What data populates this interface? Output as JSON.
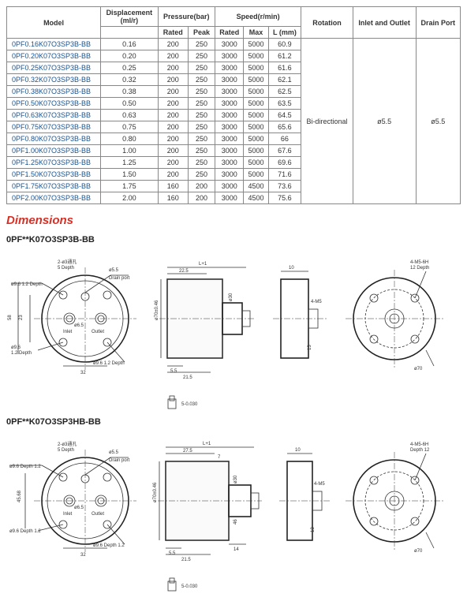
{
  "table": {
    "header": {
      "model": "Model",
      "displacement": "Displacement",
      "displacement_unit": "(ml/r)",
      "pressure": "Pressure(bar)",
      "pressure_rated": "Rated",
      "pressure_peak": "Peak",
      "speed": "Speed(r/min)",
      "speed_rated": "Rated",
      "speed_max": "Max",
      "speed_l": "L (mm)",
      "rotation": "Rotation",
      "inlet_outlet": "Inlet and Outlet",
      "drain_port": "Drain Port"
    },
    "rotation_value": "Bi-directional",
    "inlet_outlet_value": "ø5.5",
    "drain_port_value": "ø5.5",
    "rows": [
      {
        "model": "0PF0.16K07O3SP3B-BB",
        "disp": "0.16",
        "p_rated": "200",
        "p_peak": "250",
        "s_rated": "3000",
        "s_max": "5000",
        "l": "60.9"
      },
      {
        "model": "0PF0.20K07O3SP3B-BB",
        "disp": "0.20",
        "p_rated": "200",
        "p_peak": "250",
        "s_rated": "3000",
        "s_max": "5000",
        "l": "61.2"
      },
      {
        "model": "0PF0.25K07O3SP3B-BB",
        "disp": "0.25",
        "p_rated": "200",
        "p_peak": "250",
        "s_rated": "3000",
        "s_max": "5000",
        "l": "61.6"
      },
      {
        "model": "0PF0.32K07O3SP3B-BB",
        "disp": "0.32",
        "p_rated": "200",
        "p_peak": "250",
        "s_rated": "3000",
        "s_max": "5000",
        "l": "62.1"
      },
      {
        "model": "0PF0.38K07O3SP3B-BB",
        "disp": "0.38",
        "p_rated": "200",
        "p_peak": "250",
        "s_rated": "3000",
        "s_max": "5000",
        "l": "62.5"
      },
      {
        "model": "0PF0.50K07O3SP3B-BB",
        "disp": "0.50",
        "p_rated": "200",
        "p_peak": "250",
        "s_rated": "3000",
        "s_max": "5000",
        "l": "63.5"
      },
      {
        "model": "0PF0.63K07O3SP3B-BB",
        "disp": "0.63",
        "p_rated": "200",
        "p_peak": "250",
        "s_rated": "3000",
        "s_max": "5000",
        "l": "64.5"
      },
      {
        "model": "0PF0.75K07O3SP3B-BB",
        "disp": "0.75",
        "p_rated": "200",
        "p_peak": "250",
        "s_rated": "3000",
        "s_max": "5000",
        "l": "65.6"
      },
      {
        "model": "0PF0.80K07O3SP3B-BB",
        "disp": "0.80",
        "p_rated": "200",
        "p_peak": "250",
        "s_rated": "3000",
        "s_max": "5000",
        "l": "66"
      },
      {
        "model": "0PF1.00K07O3SP3B-BB",
        "disp": "1.00",
        "p_rated": "200",
        "p_peak": "250",
        "s_rated": "3000",
        "s_max": "5000",
        "l": "67.6"
      },
      {
        "model": "0PF1.25K07O3SP3B-BB",
        "disp": "1.25",
        "p_rated": "200",
        "p_peak": "250",
        "s_rated": "3000",
        "s_max": "5000",
        "l": "69.6"
      },
      {
        "model": "0PF1.50K07O3SP3B-BB",
        "disp": "1.50",
        "p_rated": "200",
        "p_peak": "250",
        "s_rated": "3000",
        "s_max": "5000",
        "l": "71.6"
      },
      {
        "model": "0PF1.75K07O3SP3B-BB",
        "disp": "1.75",
        "p_rated": "160",
        "p_peak": "200",
        "s_rated": "3000",
        "s_max": "4500",
        "l": "73.6"
      },
      {
        "model": "0PF2.00K07O3SP3B-BB",
        "disp": "2.00",
        "p_rated": "160",
        "p_peak": "200",
        "s_rated": "3000",
        "s_max": "4500",
        "l": "75.6"
      }
    ]
  },
  "dimensions_heading": "Dimensions",
  "variant_a": {
    "label": "0PF**K07O3SP3B-BB",
    "front": {
      "callouts": {
        "a": "2-ø3通孔",
        "b": "5 Depth",
        "c": "ø5.5",
        "d": "Drain port",
        "e": "ø9.6 1.2 Depth",
        "f": "23",
        "g": "58",
        "h": "ø9.6",
        "i": "1.2 Depth",
        "j": "32",
        "k": "ø6.5",
        "l": "Inlet",
        "m": "Outlet",
        "n": "ø9.6 1.2 Depth"
      }
    },
    "side": {
      "a": "L+1",
      "b": "22.5",
      "c": "ø70±0.46",
      "d": "ø30",
      "e": "5.5",
      "f": "21.5"
    },
    "rear": {
      "a": "10",
      "b": "4-M5",
      "c": "13",
      "d": "ø70",
      "e": "4-M5-6H",
      "f": "12 Depth"
    },
    "foot": "5-0.030"
  },
  "variant_b": {
    "label": "0PF**K07O3SP3HB-BB",
    "front": {
      "callouts": {
        "a": "2-ø3通孔",
        "b": "5 Depth",
        "c": "ø5.5",
        "d": "Drain port",
        "e": "ø9.6 Depth 1.2",
        "f": "45.68",
        "g": "ø6.5",
        "h": "Inlet",
        "i": "Outlet",
        "j": "ø9.6 Depth 1.2",
        "k": "32",
        "l": "ø9.6 Depth 1.2"
      }
    },
    "side": {
      "a": "L+1",
      "b": "27.5",
      "c": "7",
      "d": "ø70±0.46",
      "e": "ø30",
      "f": "46",
      "g": "14",
      "h": "5.5",
      "i": "21.5"
    },
    "rear": {
      "a": "10",
      "b": "4-M5",
      "c": "13",
      "d": "ø70",
      "e": "4-M5-6H",
      "f": "Depth 12"
    },
    "foot": "5-0.030"
  },
  "colors": {
    "heading": "#d93025",
    "model_text": "#1a5490",
    "border": "#888888",
    "line": "#333333"
  }
}
